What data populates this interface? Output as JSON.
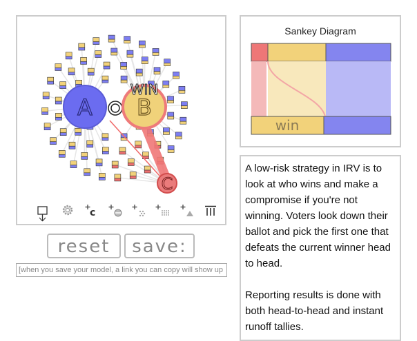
{
  "simulation": {
    "candidates": [
      {
        "label": "A",
        "color": "#6b6cf0"
      },
      {
        "label": "B",
        "color": "#f0d27a"
      },
      {
        "label": "C",
        "color": "#ea7b7b"
      }
    ],
    "winner_label": "WIN",
    "voter_colors": {
      "A": "#7d7ef2",
      "B": "#f2d27a",
      "C": "#ee6f6f"
    },
    "toolbar": [
      {
        "id": "voter-tool",
        "icon": "voter-pin-icon"
      },
      {
        "id": "gear-tool",
        "icon": "gear-icon"
      },
      {
        "id": "add-candidate-tool",
        "label": "c",
        "icon": "add-candidate-icon"
      },
      {
        "id": "add-voter-tool",
        "icon": "add-voter-icon"
      },
      {
        "id": "add-voter-group-tool",
        "icon": "add-voter-group-icon"
      },
      {
        "id": "add-voter-grid-tool",
        "icon": "add-voter-grid-icon"
      },
      {
        "id": "add-triangle-tool",
        "icon": "add-triangle-icon"
      },
      {
        "id": "trash-tool",
        "icon": "trash-icon"
      }
    ]
  },
  "buttons": {
    "reset_label": "reset",
    "save_label": "save:"
  },
  "save_link": {
    "value": "[when you save your model, a link you can copy will show up here]"
  },
  "sankey": {
    "title": "Sankey Diagram",
    "winner_text": "win",
    "colors": {
      "A": "#8485ef",
      "B": "#f2d27a",
      "C": "#ee7777"
    }
  },
  "description": {
    "paragraph1": "A low-risk strategy in IRV is to look at who wins and make a compromise if you're not winning. Voters look down their ballot and pick the first one that defeats the current winner head to head.",
    "paragraph2": "Reporting results is done with both head-to-head and instant runoff tallies."
  }
}
